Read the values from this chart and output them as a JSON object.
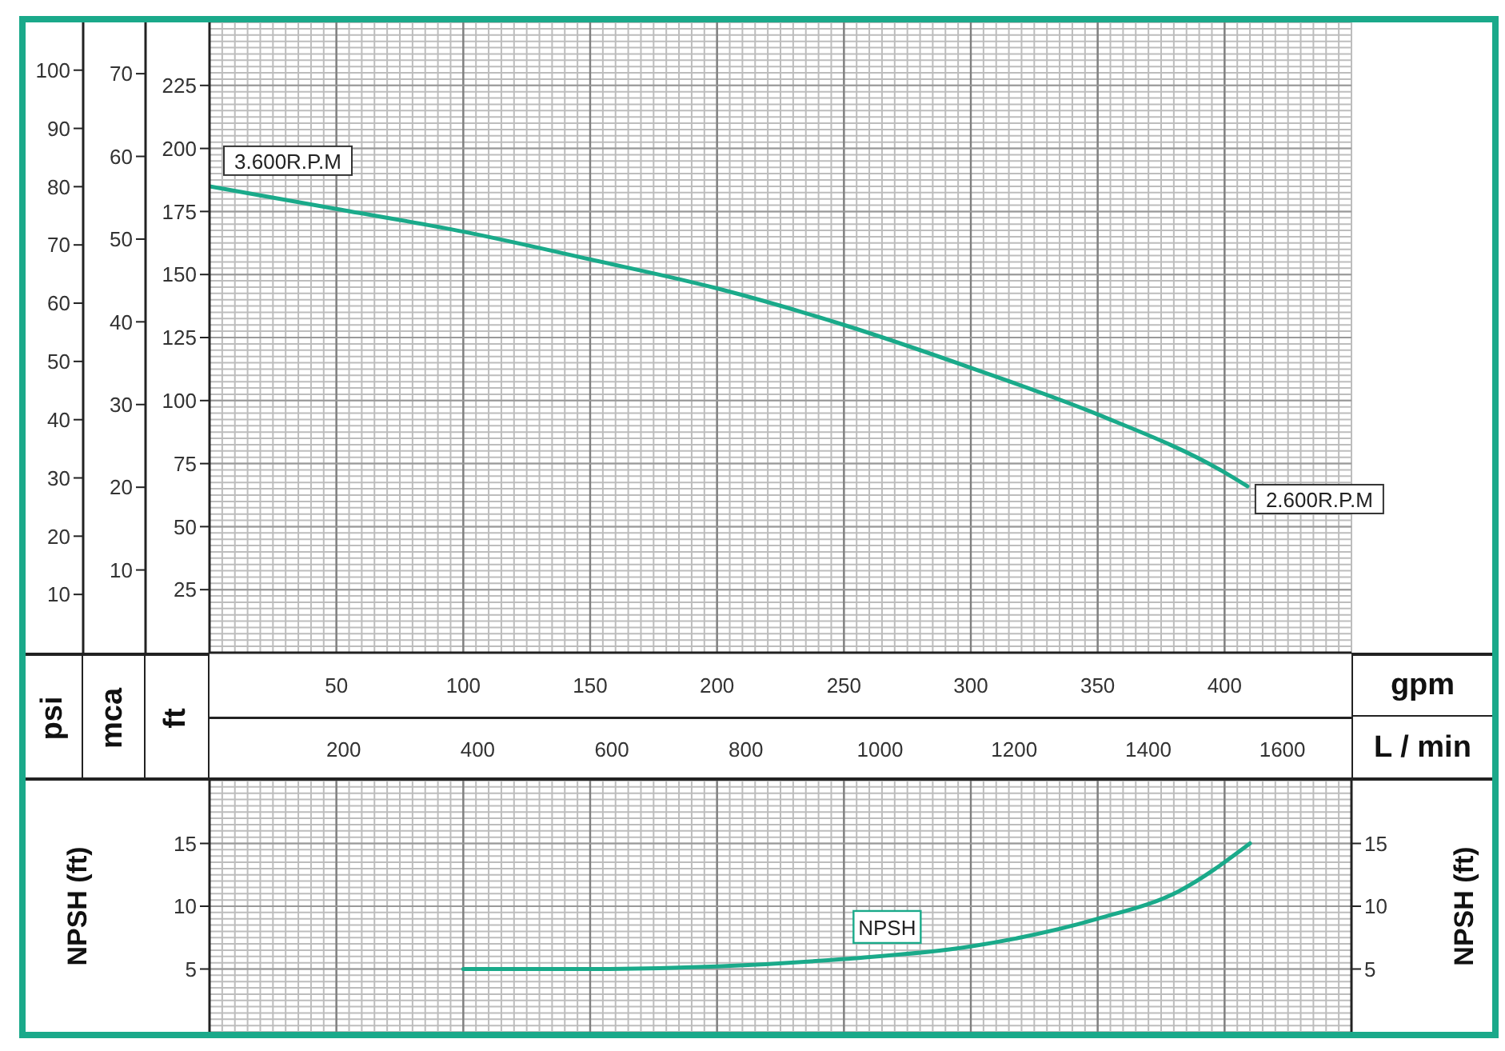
{
  "chart_data": [
    {
      "type": "line",
      "xlabel": "gpm",
      "x2label": "L / min",
      "ylabel": "ft",
      "y2label": "psi",
      "y3label": "mca",
      "x": [
        0,
        50,
        100,
        150,
        200,
        250,
        300,
        350,
        400,
        409
      ],
      "series": [
        {
          "color": "#1aaa8a",
          "values": [
            185,
            176,
            167,
            156,
            144.5,
            130,
            113,
            94.5,
            71.5,
            66
          ]
        }
      ],
      "xlim": [
        0,
        450
      ],
      "xticks": [
        50,
        100,
        150,
        200,
        250,
        300,
        350,
        400
      ],
      "x2lim": [
        0,
        1703
      ],
      "x2ticks": [
        200,
        400,
        600,
        800,
        1000,
        1200,
        1400,
        1600
      ],
      "ylim": [
        0,
        250
      ],
      "yticks": [
        25,
        50,
        75,
        100,
        125,
        150,
        175,
        200,
        225
      ],
      "y2lim": [
        0,
        108.2
      ],
      "y2ticks": [
        10,
        20,
        30,
        40,
        50,
        60,
        70,
        80,
        90,
        100
      ],
      "y3lim": [
        0,
        76.2
      ],
      "y3ticks": [
        10,
        20,
        30,
        40,
        50,
        60,
        70
      ],
      "grid": true,
      "marker": "none",
      "annotations": [
        {
          "text": "3.600R.P.M",
          "x": 0,
          "y": 185
        },
        {
          "text": "2.600R.P.M",
          "x": 409,
          "y": 66
        }
      ]
    },
    {
      "type": "line",
      "ylabel": "NPSH (ft)",
      "y2label": "NPSH (ft)",
      "x": [
        100,
        150,
        200,
        250,
        300,
        350,
        382,
        410
      ],
      "series": [
        {
          "name": "NPSH",
          "color": "#1aaa8a",
          "values": [
            5,
            5,
            5.2,
            5.8,
            6.8,
            9,
            11.2,
            15
          ]
        }
      ],
      "xlim": [
        0,
        450
      ],
      "xticks": [
        50,
        100,
        150,
        200,
        250,
        300,
        350,
        400
      ],
      "ylim": [
        0,
        20
      ],
      "yticks": [
        5,
        10,
        15
      ],
      "y2lim": [
        0,
        20
      ],
      "y2ticks": [
        5,
        10,
        15
      ],
      "grid": true,
      "marker": "none",
      "tick_labels": "y"
    }
  ]
}
